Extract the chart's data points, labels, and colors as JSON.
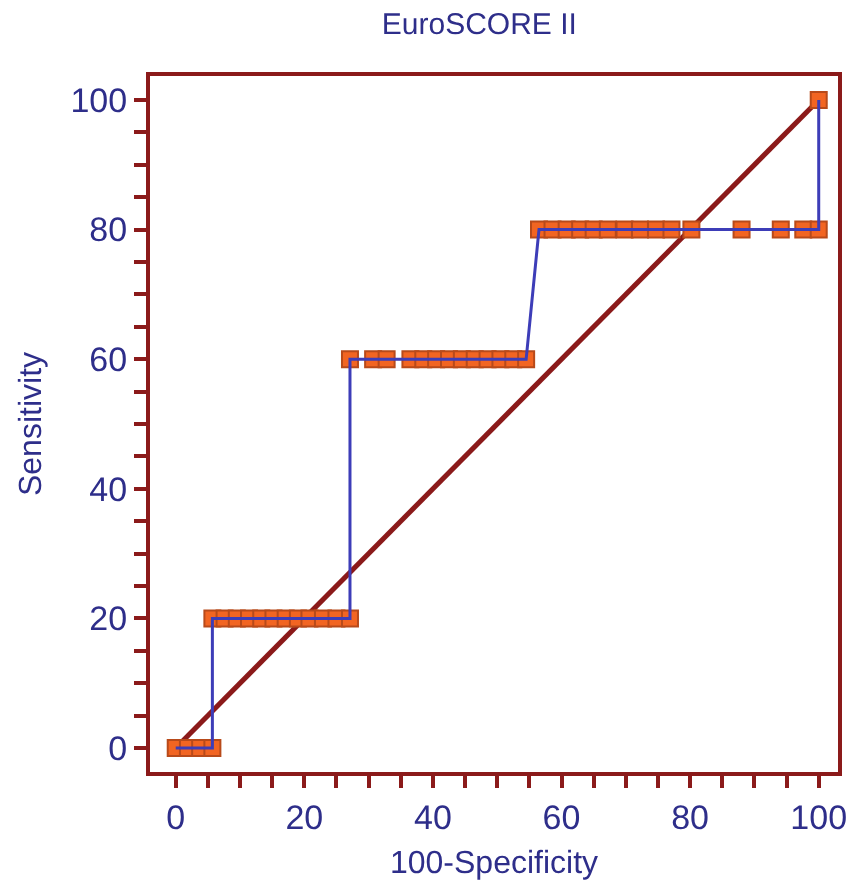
{
  "chart_data": {
    "type": "line",
    "title": "EuroSCORE II",
    "xlabel": "100-Specificity",
    "ylabel": "Sensitivity",
    "xlim": [
      -4,
      103
    ],
    "ylim": [
      -3.7,
      103.7
    ],
    "xticks": [
      0,
      {
        "value": 5,
        "label": null
      },
      {
        "value": 10,
        "label": null
      },
      {
        "value": 15,
        "label": null
      },
      20,
      {
        "value": 25,
        "label": null
      },
      {
        "value": 30,
        "label": null
      },
      {
        "value": 35,
        "label": null
      },
      40,
      {
        "value": 45,
        "label": null
      },
      {
        "value": 50,
        "label": null
      },
      {
        "value": 55,
        "label": null
      },
      60,
      {
        "value": 65,
        "label": null
      },
      {
        "value": 70,
        "label": null
      },
      {
        "value": 75,
        "label": null
      },
      80,
      {
        "value": 85,
        "label": null
      },
      {
        "value": 90,
        "label": null
      },
      {
        "value": 95,
        "label": null
      },
      100
    ],
    "yticks": [
      0,
      {
        "value": 5,
        "label": null
      },
      {
        "value": 10,
        "label": null
      },
      {
        "value": 15,
        "label": null
      },
      20,
      {
        "value": 25,
        "label": null
      },
      {
        "value": 30,
        "label": null
      },
      {
        "value": 35,
        "label": null
      },
      40,
      {
        "value": 45,
        "label": null
      },
      {
        "value": 50,
        "label": null
      },
      {
        "value": 55,
        "label": null
      },
      60,
      {
        "value": 65,
        "label": null
      },
      {
        "value": 70,
        "label": null
      },
      {
        "value": 75,
        "label": null
      },
      80,
      {
        "value": 85,
        "label": null
      },
      {
        "value": 90,
        "label": null
      },
      {
        "value": 95,
        "label": null
      },
      100
    ],
    "series": [
      {
        "color": "#3d3db8",
        "marker": "square",
        "colors": [
          "#f26522",
          "#f26522",
          "#f26522",
          "#f26522",
          "#f26522",
          "#f26522",
          "#f26522",
          "#f26522",
          "#f26522",
          "#f26522",
          "#f26522",
          "#f26522",
          "#f26522",
          "#f26522",
          "#f26522",
          "#f26522",
          "#f26522",
          "#f26522",
          "#f26522",
          "#f26522",
          "#f26522",
          "#f26522",
          "#f26522",
          "#f26522",
          "#f26522",
          "#f26522",
          "#f26522",
          "#f26522",
          "#f26522",
          "#f26522",
          "#f26522",
          "#f26522",
          "#f26522",
          "#f26522",
          "#f26522",
          "#f26522",
          "#f26522",
          "#f26522",
          "#f26522",
          "#f26522",
          "#f26522",
          "#f26522",
          "#f26522",
          "#f26522",
          "#f26522"
        ],
        "x": [
          0,
          1.9,
          3.8,
          5.7,
          5.7,
          7.6,
          9.5,
          11.4,
          13.3,
          15.2,
          17.1,
          19.0,
          20.8,
          22.9,
          25.0,
          27.1,
          27.1,
          30.7,
          32.8,
          36.5,
          38.5,
          40.5,
          42.5,
          44.5,
          46.5,
          48.5,
          50.5,
          52.5,
          54.5,
          56.5,
          58.6,
          60.8,
          62.9,
          65.0,
          67.2,
          69.8,
          72.2,
          74.7,
          77.1,
          80.2,
          88.0,
          94.1,
          97.6,
          100,
          100
        ],
        "values": [
          0,
          0,
          0,
          0,
          20,
          20,
          20,
          20,
          20,
          20,
          20,
          20,
          20,
          20,
          20,
          20,
          60,
          60,
          60,
          60,
          60,
          60,
          60,
          60,
          60,
          60,
          60,
          60,
          60,
          80,
          80,
          80,
          80,
          80,
          80,
          80,
          80,
          80,
          80,
          80,
          80,
          80,
          80,
          80,
          100
        ]
      },
      {
        "color": "#8b1a1a",
        "marker": "none",
        "x": [
          0,
          100
        ],
        "values": [
          0,
          100
        ]
      }
    ]
  }
}
